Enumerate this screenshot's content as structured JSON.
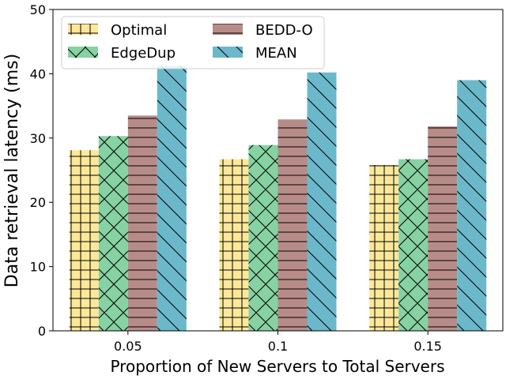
{
  "chart_data": {
    "type": "bar",
    "categories": [
      "0.05",
      "0.1",
      "0.15"
    ],
    "series": [
      {
        "name": "Optimal",
        "values": [
          28.1,
          26.7,
          25.8
        ],
        "color": "#fde89a",
        "hatch": "grid"
      },
      {
        "name": "EdgeDup",
        "values": [
          30.3,
          28.9,
          26.7
        ],
        "color": "#86d2a2",
        "hatch": "cross-diagonal"
      },
      {
        "name": "BEDD-O",
        "values": [
          33.5,
          32.9,
          31.8
        ],
        "color": "#b78c88",
        "hatch": "horizontal"
      },
      {
        "name": "MEAN",
        "values": [
          41.2,
          40.2,
          39.0
        ],
        "color": "#6cb8cb",
        "hatch": "back-diagonal"
      }
    ],
    "title": "",
    "xlabel": "Proportion of New Servers to Total Servers",
    "ylabel": "Data retrieval latency (ms)",
    "ylim": [
      0,
      50
    ],
    "yticks": [
      "0",
      "10",
      "20",
      "30",
      "40",
      "50"
    ],
    "grid": false,
    "legend_position": "top-left",
    "legend_columns": 2
  }
}
